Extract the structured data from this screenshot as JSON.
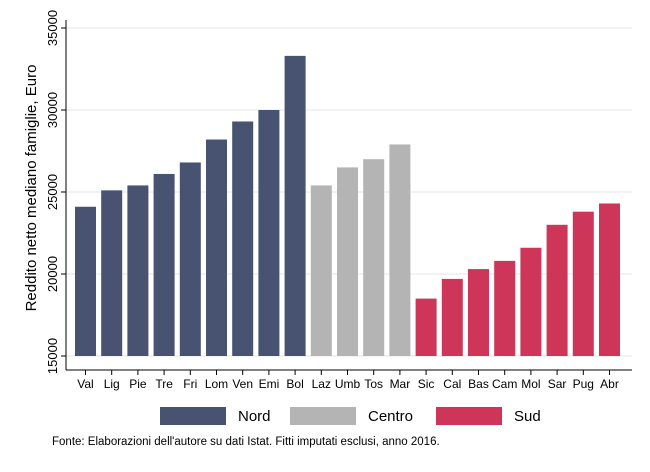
{
  "chart_data": {
    "type": "bar",
    "title": "",
    "xlabel": "",
    "ylabel": "Reddito netto mediano famiglie, Euro",
    "ylim": [
      15000,
      35000
    ],
    "yticks": [
      "15000",
      "20000",
      "25000",
      "30000",
      "35000"
    ],
    "grid": true,
    "legend_position": "bottom",
    "categories": [
      "Val",
      "Lig",
      "Pie",
      "Tre",
      "Fri",
      "Lom",
      "Ven",
      "Emi",
      "Bol",
      "Laz",
      "Umb",
      "Tos",
      "Mar",
      "Sic",
      "Cal",
      "Bas",
      "Cam",
      "Mol",
      "Sar",
      "Pug",
      "Abr"
    ],
    "values": [
      24100,
      25100,
      25400,
      26100,
      26800,
      28200,
      29300,
      30000,
      33300,
      25400,
      26500,
      27000,
      27900,
      18500,
      19700,
      20300,
      20800,
      21600,
      23000,
      23800,
      24300
    ],
    "groups": [
      "Nord",
      "Nord",
      "Nord",
      "Nord",
      "Nord",
      "Nord",
      "Nord",
      "Nord",
      "Nord",
      "Centro",
      "Centro",
      "Centro",
      "Centro",
      "Sud",
      "Sud",
      "Sud",
      "Sud",
      "Sud",
      "Sud",
      "Sud",
      "Sud"
    ],
    "series": [
      {
        "name": "Nord",
        "color": "#485271"
      },
      {
        "name": "Centro",
        "color": "#b4b4b4"
      },
      {
        "name": "Sud",
        "color": "#cd3658"
      }
    ]
  },
  "legend": {
    "nord": "Nord",
    "centro": "Centro",
    "sud": "Sud"
  },
  "source_note": "Fonte: Elaborazioni dell'autore su dati Istat. Fitti imputati esclusi, anno 2016."
}
